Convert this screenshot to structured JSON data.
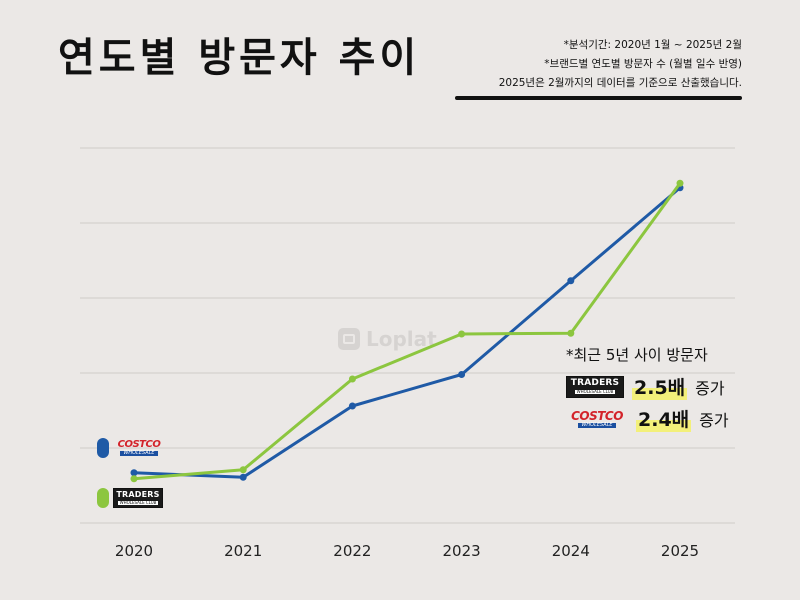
{
  "title": "연도별 방문자 추이",
  "notes": [
    "*분석기간: 2020년 1월 ~ 2025년 2월",
    "*브랜드별 연도별 방문자 수 (월별 일수 반영)",
    "2025년은 2월까지의 데이터를 기준으로 산출했습니다."
  ],
  "watermark": "Loplat",
  "logos": {
    "costco": {
      "main": "COSTCO",
      "sub": "WHOLESALE"
    },
    "traders": {
      "main": "TRADERS",
      "sub": "WHOLESALE CLUB"
    }
  },
  "callout": {
    "title": "*최근 5년 사이 방문자",
    "rows": [
      {
        "brand": "traders",
        "value": "2.5배",
        "suffix": "증가"
      },
      {
        "brand": "costco",
        "value": "2.4배",
        "suffix": "증가"
      }
    ]
  },
  "chart_data": {
    "type": "line",
    "categories": [
      "2020",
      "2021",
      "2022",
      "2023",
      "2024",
      "2025"
    ],
    "ylim": [
      0,
      5
    ],
    "grid": true,
    "y_axis_labels_visible": false,
    "legend_position": "left",
    "series": [
      {
        "name": "Costco Wholesale",
        "color": "#1f5aa6",
        "values": [
          0.67,
          0.61,
          1.56,
          1.98,
          3.23,
          4.47
        ]
      },
      {
        "name": "Traders Wholesale Club",
        "color": "#8cc63f",
        "values": [
          0.59,
          0.71,
          1.92,
          2.52,
          2.53,
          4.53
        ]
      }
    ],
    "title": "",
    "xlabel": "",
    "ylabel": ""
  }
}
